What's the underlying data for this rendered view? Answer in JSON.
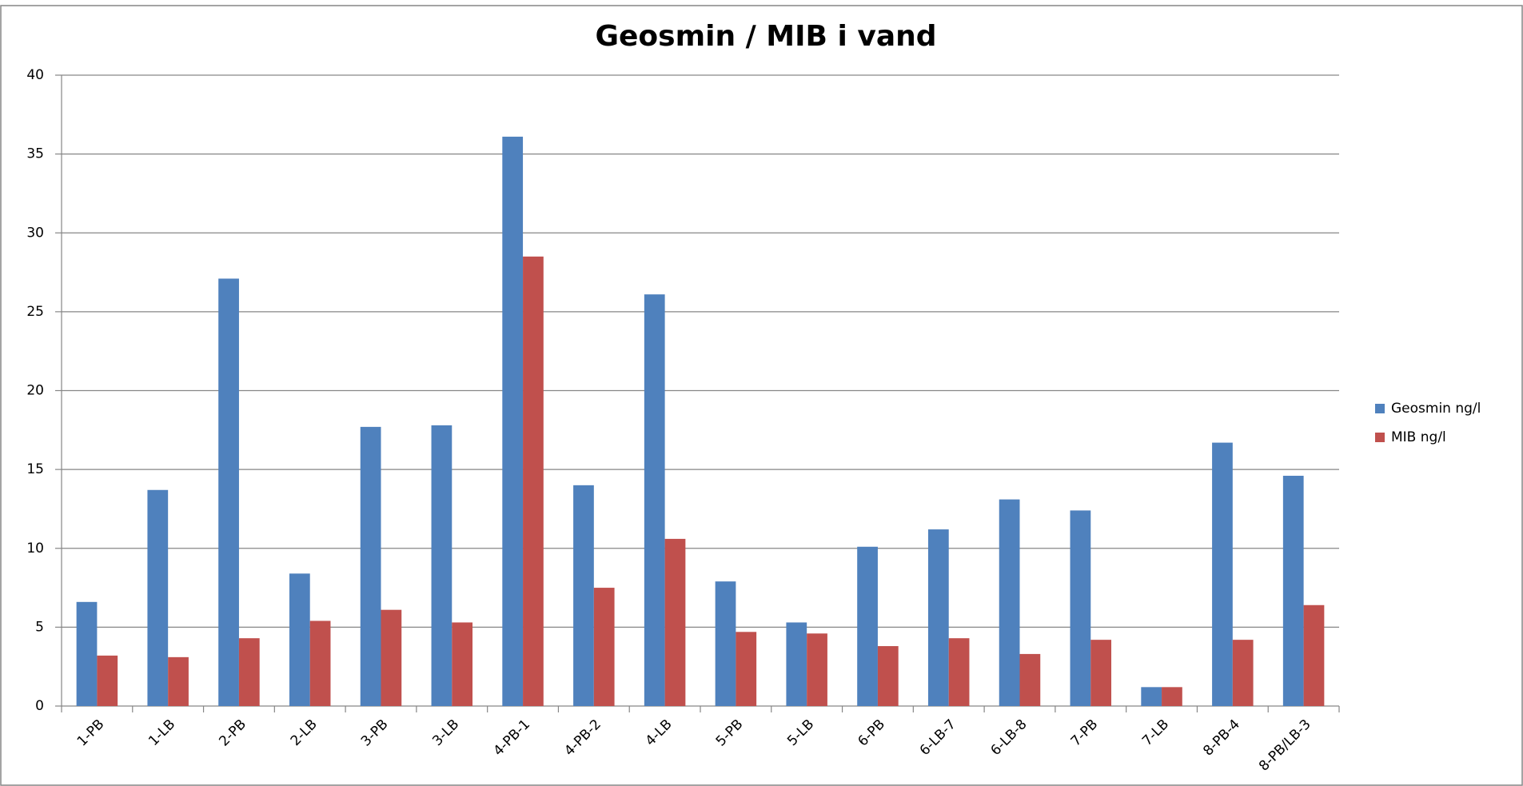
{
  "chart_data": {
    "type": "bar",
    "title": "Geosmin / MIB i vand",
    "categories": [
      "1-PB",
      "1-LB",
      "2-PB",
      "2-LB",
      "3-PB",
      "3-LB",
      "4-PB-1",
      "4-PB-2",
      "4-LB",
      "5-PB",
      "5-LB",
      "6-PB",
      "6-LB-7",
      "6-LB-8",
      "7-PB",
      "7-LB",
      "8-PB-4",
      "8-PB/LB-3"
    ],
    "series": [
      {
        "name": "Geosmin ng/l",
        "color": "#4f81bd",
        "values": [
          6.6,
          13.7,
          27.1,
          8.4,
          17.7,
          17.8,
          36.1,
          14.0,
          26.1,
          7.9,
          5.3,
          10.1,
          11.2,
          13.1,
          12.4,
          1.2,
          16.7,
          14.6
        ]
      },
      {
        "name": "MIB ng/l",
        "color": "#c0504d",
        "values": [
          3.2,
          3.1,
          4.3,
          5.4,
          6.1,
          5.3,
          28.5,
          7.5,
          10.6,
          4.7,
          4.6,
          3.8,
          4.3,
          3.3,
          4.2,
          1.2,
          4.2,
          6.4
        ]
      }
    ],
    "ylim": [
      0,
      40
    ],
    "yticks": [
      0,
      5,
      10,
      15,
      20,
      25,
      30,
      35,
      40
    ],
    "grid": true,
    "legend": "right"
  }
}
